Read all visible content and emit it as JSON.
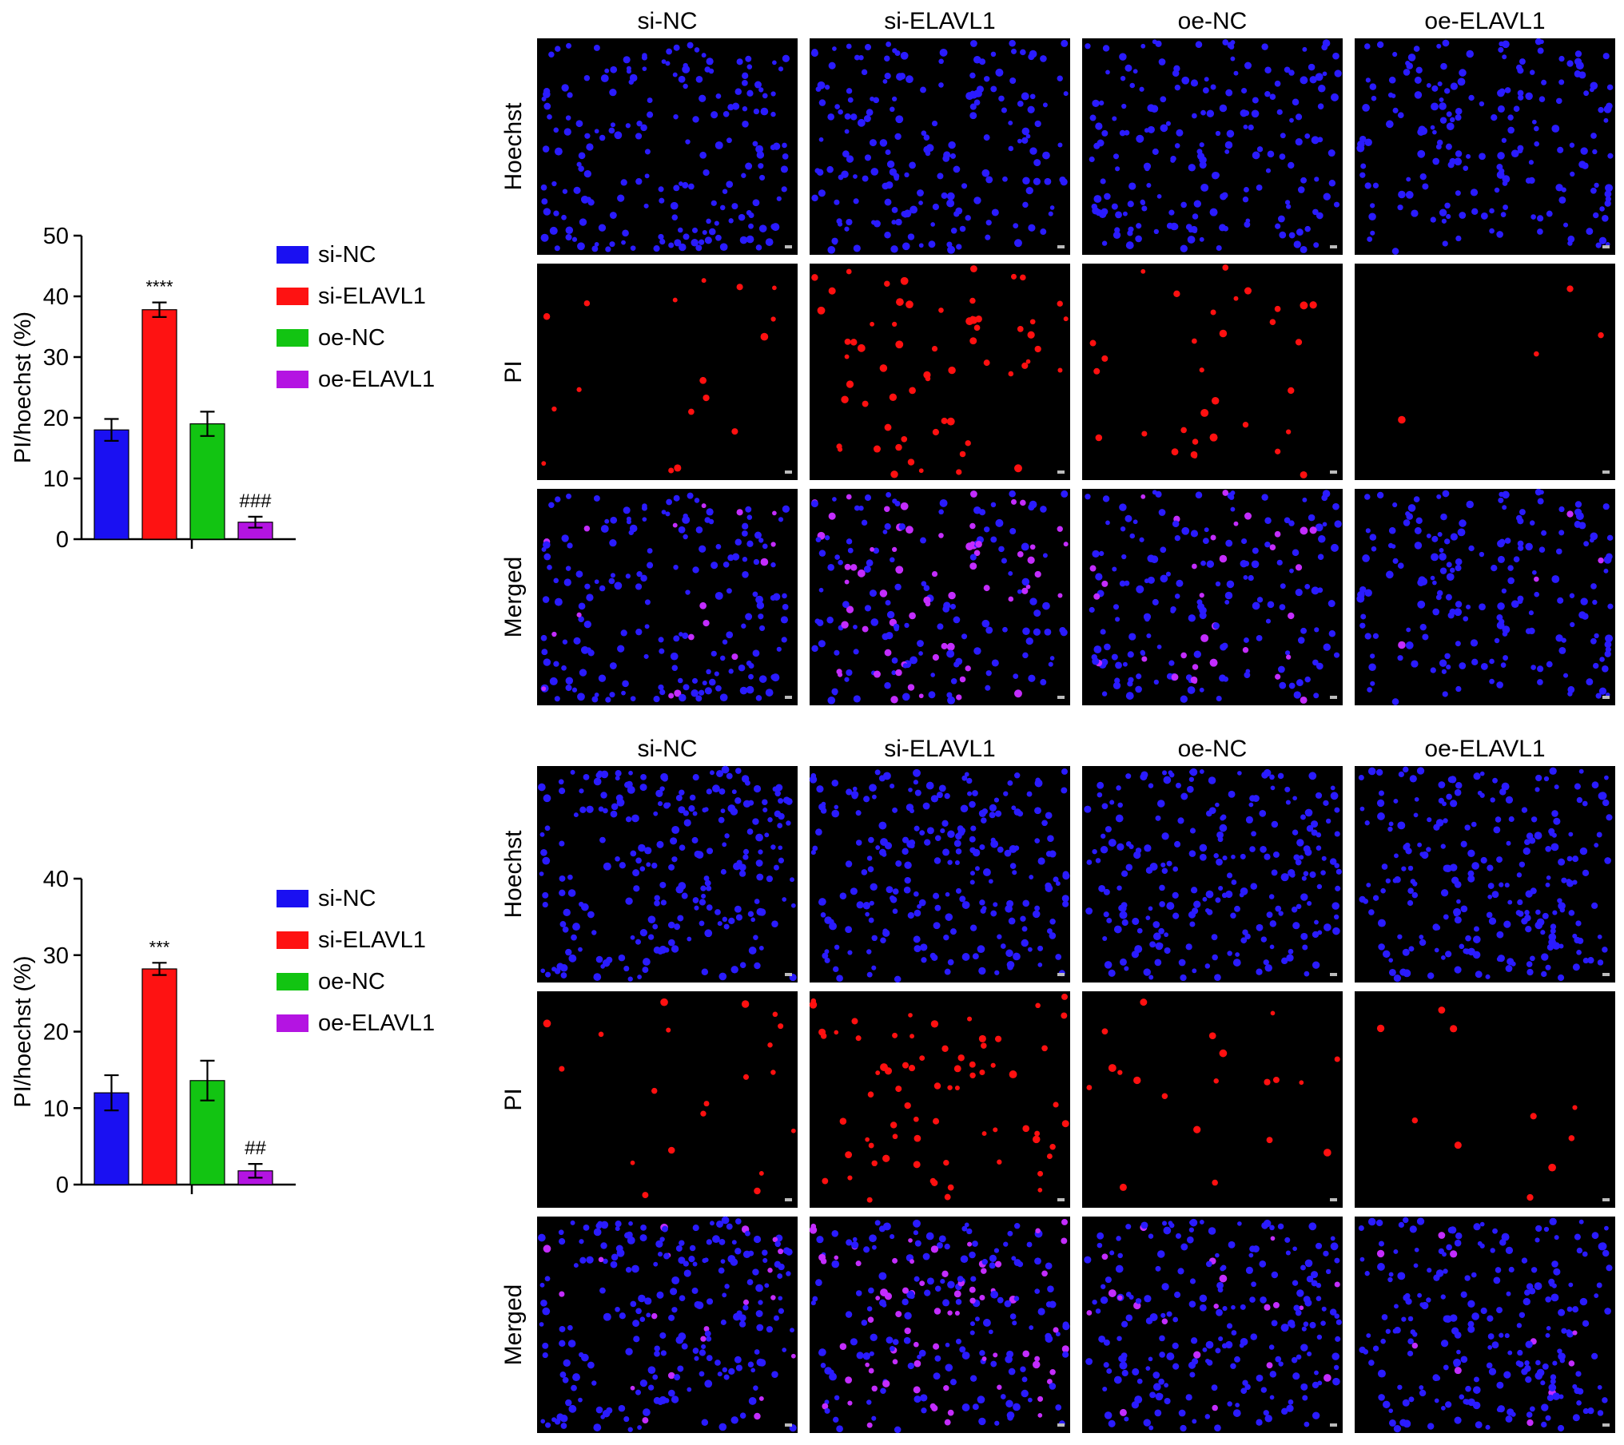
{
  "chart_data": [
    {
      "type": "bar",
      "categories": [
        "si-NC",
        "si-ELAVL1",
        "oe-NC",
        "oe-ELAVL1"
      ],
      "values": [
        18.0,
        37.8,
        19.0,
        2.8
      ],
      "errors": [
        1.8,
        1.2,
        2.0,
        0.9
      ],
      "annotations": [
        "",
        "****",
        "",
        "###"
      ],
      "colors": [
        "#1a10f2",
        "#fe1212",
        "#12c412",
        "#b414e2"
      ],
      "ylabel": "PI/hoechst (%)",
      "ylim": [
        0,
        50
      ],
      "yticks": [
        0,
        10,
        20,
        30,
        40,
        50
      ],
      "legend": {
        "entries": [
          "si-NC",
          "si-ELAVL1",
          "oe-NC",
          "oe-ELAVL1"
        ],
        "placement": "right"
      }
    },
    {
      "type": "bar",
      "categories": [
        "si-NC",
        "si-ELAVL1",
        "oe-NC",
        "oe-ELAVL1"
      ],
      "values": [
        12.0,
        28.2,
        13.6,
        1.8
      ],
      "errors": [
        2.3,
        0.8,
        2.6,
        0.9
      ],
      "annotations": [
        "",
        "***",
        "",
        "##"
      ],
      "colors": [
        "#1a10f2",
        "#fe1212",
        "#12c412",
        "#b414e2"
      ],
      "ylabel": "PI/hoechst (%)",
      "ylim": [
        0,
        40
      ],
      "yticks": [
        0,
        10,
        20,
        30,
        40
      ],
      "legend": {
        "entries": [
          "si-NC",
          "si-ELAVL1",
          "oe-NC",
          "oe-ELAVL1"
        ],
        "placement": "right"
      }
    }
  ],
  "micrographs": {
    "column_labels": [
      "si-NC",
      "si-ELAVL1",
      "oe-NC",
      "oe-ELAVL1"
    ],
    "row_labels": [
      "Hoechst",
      "PI",
      "Merged"
    ],
    "pi_density": [
      [
        0.1,
        0.38,
        0.17,
        0.02
      ],
      [
        0.08,
        0.34,
        0.12,
        0.04
      ]
    ]
  }
}
